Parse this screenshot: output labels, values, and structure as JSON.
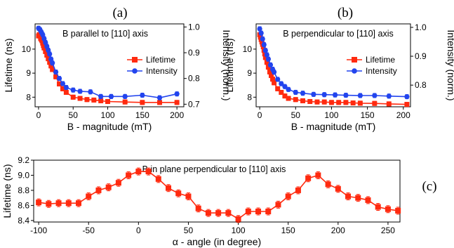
{
  "panel_labels": {
    "a": "(a)",
    "b": "(b)",
    "c": "(c)"
  },
  "colors": {
    "lifetime": "#ff2a0f",
    "intensity": "#2244ee",
    "axis": "#000000"
  },
  "chart_data": [
    {
      "id": "a",
      "type": "line",
      "annotation": "B parallel to [110] axis",
      "xlabel": "B - magnitude (mT)",
      "ylabel": "Lifetime (ns)",
      "y2label": "Intensity (norm.)",
      "xlim": [
        -5,
        210
      ],
      "ylim": [
        7.6,
        11.05
      ],
      "y2lim": [
        0.69,
        1.012
      ],
      "xticks": [
        0,
        50,
        100,
        150,
        200
      ],
      "yticks": [
        8,
        9,
        10
      ],
      "y2ticks": [
        0.7,
        0.8,
        0.9,
        1.0
      ],
      "y2ticklabels": [
        "0.7",
        "0.8",
        "0.9",
        "1.0"
      ],
      "legend": [
        "Lifetime",
        "Intensity"
      ],
      "series": [
        {
          "name": "Lifetime",
          "axis": "left",
          "marker": "square",
          "x": [
            0,
            1,
            2,
            3,
            4,
            5,
            6,
            7,
            8,
            10,
            12,
            14,
            16,
            18,
            20,
            25,
            30,
            35,
            40,
            50,
            60,
            70,
            80,
            90,
            100,
            125,
            150,
            175,
            200
          ],
          "y": [
            10.55,
            10.6,
            10.55,
            10.45,
            10.4,
            10.35,
            10.25,
            10.15,
            10.05,
            9.9,
            9.75,
            9.6,
            9.45,
            9.3,
            9.15,
            8.85,
            8.55,
            8.35,
            8.2,
            8.0,
            7.95,
            7.9,
            7.88,
            7.85,
            7.82,
            7.8,
            7.78,
            7.78,
            7.78
          ]
        },
        {
          "name": "Intensity",
          "axis": "right",
          "marker": "circle",
          "x": [
            0,
            2,
            4,
            6,
            8,
            10,
            12,
            14,
            16,
            18,
            20,
            25,
            30,
            35,
            40,
            50,
            60,
            75,
            90,
            105,
            125,
            150,
            175,
            200
          ],
          "y": [
            0.995,
            0.99,
            0.98,
            0.97,
            0.955,
            0.94,
            0.925,
            0.91,
            0.895,
            0.875,
            0.86,
            0.825,
            0.8,
            0.78,
            0.765,
            0.755,
            0.75,
            0.748,
            0.73,
            0.73,
            0.73,
            0.735,
            0.725,
            0.74
          ]
        }
      ]
    },
    {
      "id": "b",
      "type": "line",
      "annotation": "B perpendicular to [110] axis",
      "xlabel": "B - magnitude (mT)",
      "ylabel": "Lifetime (ns)",
      "y2label": "Intensity (norm.)",
      "xlim": [
        -5,
        210
      ],
      "ylim": [
        7.6,
        11.05
      ],
      "y2lim": [
        0.725,
        1.012
      ],
      "xticks": [
        0,
        50,
        100,
        150,
        200
      ],
      "yticks": [
        8,
        9,
        10
      ],
      "y2ticks": [
        0.8,
        0.9,
        1.0
      ],
      "y2ticklabels": [
        "0.8",
        "0.9",
        "1.0"
      ],
      "legend": [
        "Lifetime",
        "Intensity"
      ],
      "series": [
        {
          "name": "Lifetime",
          "axis": "left",
          "marker": "square",
          "x": [
            0,
            1,
            2,
            3,
            4,
            5,
            6,
            7,
            8,
            10,
            12,
            14,
            16,
            18,
            20,
            25,
            30,
            35,
            40,
            50,
            60,
            70,
            80,
            90,
            100,
            110,
            120,
            130,
            140,
            160,
            180,
            205
          ],
          "y": [
            10.6,
            10.5,
            10.4,
            10.3,
            10.2,
            10.1,
            9.95,
            9.8,
            9.65,
            9.45,
            9.25,
            9.05,
            8.9,
            8.75,
            8.6,
            8.35,
            8.2,
            8.05,
            7.95,
            7.9,
            7.85,
            7.82,
            7.8,
            7.8,
            7.78,
            7.78,
            7.78,
            7.76,
            7.75,
            7.74,
            7.72,
            7.7
          ]
        },
        {
          "name": "Intensity",
          "axis": "right",
          "marker": "circle",
          "x": [
            0,
            2,
            4,
            6,
            8,
            10,
            12,
            15,
            18,
            20,
            25,
            30,
            35,
            40,
            50,
            60,
            75,
            90,
            105,
            120,
            140,
            160,
            180,
            205
          ],
          "y": [
            0.995,
            0.98,
            0.96,
            0.94,
            0.92,
            0.905,
            0.89,
            0.87,
            0.855,
            0.845,
            0.82,
            0.805,
            0.795,
            0.785,
            0.775,
            0.772,
            0.768,
            0.767,
            0.766,
            0.765,
            0.764,
            0.764,
            0.762,
            0.76
          ]
        }
      ]
    },
    {
      "id": "c",
      "type": "line",
      "annotation": "B in plane perpendicular to [110] axis",
      "xlabel": "α - angle (in degree)",
      "ylabel": "Lifetime (ns)",
      "xlim": [
        -105,
        262
      ],
      "ylim": [
        8.38,
        9.2
      ],
      "xticks": [
        -100,
        -50,
        0,
        50,
        100,
        150,
        200,
        250
      ],
      "yticks": [
        8.4,
        8.6,
        8.8,
        9.0,
        9.2
      ],
      "series": [
        {
          "name": "Lifetime",
          "axis": "left",
          "marker": "square",
          "x": [
            -100,
            -90,
            -80,
            -70,
            -60,
            -50,
            -40,
            -30,
            -20,
            -10,
            0,
            10,
            20,
            30,
            40,
            50,
            60,
            70,
            80,
            90,
            100,
            110,
            120,
            130,
            140,
            150,
            160,
            170,
            180,
            190,
            200,
            210,
            220,
            230,
            240,
            250,
            260
          ],
          "y": [
            8.64,
            8.62,
            8.63,
            8.63,
            8.63,
            8.72,
            8.8,
            8.84,
            8.9,
            9.0,
            9.05,
            9.05,
            8.95,
            8.83,
            8.76,
            8.72,
            8.56,
            8.5,
            8.5,
            8.5,
            8.42,
            8.52,
            8.52,
            8.52,
            8.61,
            8.72,
            8.8,
            8.96,
            9.0,
            8.88,
            8.82,
            8.72,
            8.7,
            8.67,
            8.58,
            8.55,
            8.53
          ]
        }
      ]
    }
  ]
}
